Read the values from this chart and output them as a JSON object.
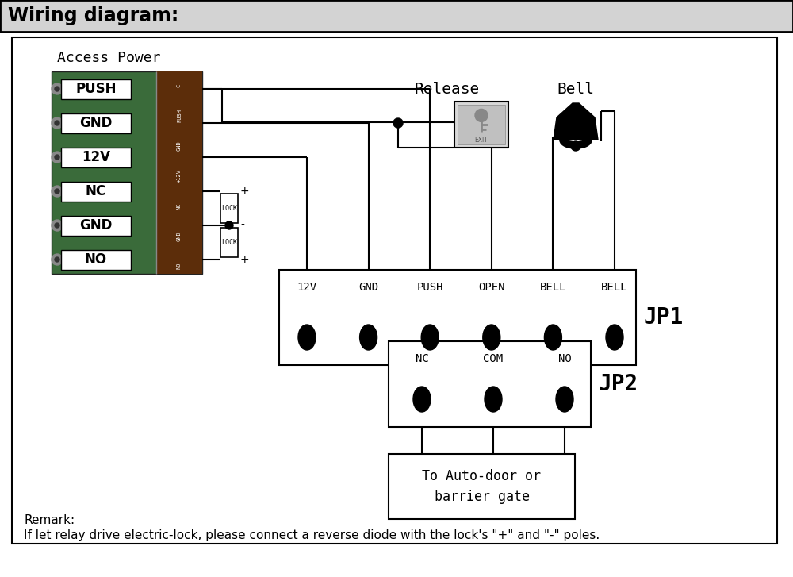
{
  "title": "Wiring diagram:",
  "access_power": "Access Power",
  "release_label": "Release",
  "bell_label": "Bell",
  "jp1_labels": [
    "12V",
    "GND",
    "PUSH",
    "OPEN",
    "BELL",
    "BELL"
  ],
  "jp2_labels": [
    "NC",
    "COM",
    "NO"
  ],
  "jp1_tag": "JP1",
  "jp2_tag": "JP2",
  "terminal_labels": [
    "PUSH",
    "GND",
    "12V",
    "NC",
    "GND",
    "NO"
  ],
  "autodoor_line1": "To Auto-door or",
  "autodoor_line2": "barrier gate",
  "remark1": "Remark:",
  "remark2": "If let relay drive electric-lock, please connect a reverse diode with the lock's \"+\" and \"-\" poles.",
  "lock_label": "LOCK",
  "title_bg": "#d3d3d3",
  "board_green": "#3a6b3a",
  "board_brown": "#5c2d0a",
  "bg_white": "#ffffff",
  "black": "#000000"
}
